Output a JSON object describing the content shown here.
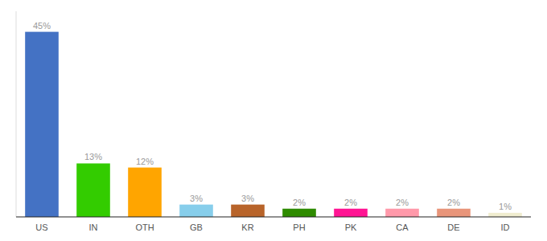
{
  "chart_data": {
    "type": "bar",
    "categories": [
      "US",
      "IN",
      "OTH",
      "GB",
      "KR",
      "PH",
      "PK",
      "CA",
      "DE",
      "ID"
    ],
    "values": [
      45,
      13,
      12,
      3,
      3,
      2,
      2,
      2,
      2,
      1
    ],
    "value_labels": [
      "45%",
      "13%",
      "12%",
      "3%",
      "3%",
      "2%",
      "2%",
      "2%",
      "2%",
      "1%"
    ],
    "colors": [
      "#4472C4",
      "#33CC00",
      "#FFA500",
      "#87CEEB",
      "#B8642A",
      "#2E8B00",
      "#FF1493",
      "#FF99AA",
      "#E8957A",
      "#F0EDD0"
    ],
    "ylim": [
      0,
      50
    ],
    "data_labels": true,
    "tick_labels": "x",
    "grid": false
  }
}
